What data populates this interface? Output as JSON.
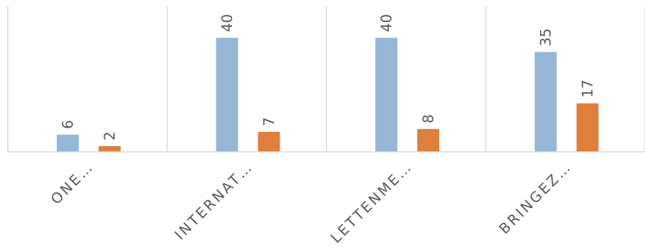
{
  "chart_data": {
    "type": "bar",
    "categories": [
      "ONE…",
      "INTERNAT…",
      "LETTENME…",
      "BRINGEZ…"
    ],
    "series": [
      {
        "values": [
          6,
          40,
          40,
          35
        ],
        "color": "#95B7D5"
      },
      {
        "values": [
          2,
          7,
          8,
          17
        ],
        "color": "#E07E3C"
      }
    ],
    "ylim": [
      0,
      50
    ],
    "grid": false,
    "category_separators": true,
    "data_labels": "rotated-vertical",
    "tick_labels": "rotated-45"
  }
}
